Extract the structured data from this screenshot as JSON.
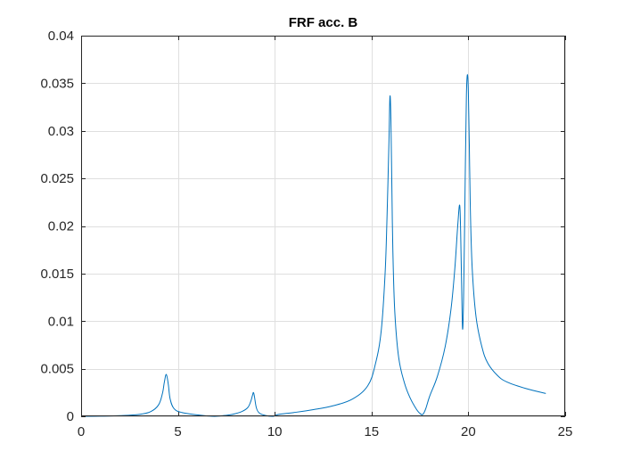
{
  "chart_data": {
    "type": "line",
    "title": "FRF acc. B",
    "xlabel": "",
    "ylabel": "",
    "xlim": [
      0,
      25
    ],
    "ylim": [
      0,
      0.04
    ],
    "grid": true,
    "x_ticks": [
      0,
      5,
      10,
      15,
      20,
      25
    ],
    "x_tick_labels": [
      "0",
      "5",
      "10",
      "15",
      "20",
      "25"
    ],
    "y_ticks": [
      0,
      0.005,
      0.01,
      0.015,
      0.02,
      0.025,
      0.03,
      0.035,
      0.04
    ],
    "y_tick_labels": [
      "0",
      "0.005",
      "0.01",
      "0.015",
      "0.02",
      "0.025",
      "0.03",
      "0.035",
      "0.04"
    ],
    "series": [
      {
        "color": "#0072BD",
        "x": [
          0,
          1,
          2,
          3,
          3.6,
          4.0,
          4.2,
          4.3,
          4.4,
          4.5,
          4.6,
          4.8,
          5.2,
          6,
          6.5,
          6.9,
          7.3,
          7.8,
          8.3,
          8.6,
          8.75,
          8.85,
          8.9,
          8.95,
          9.05,
          9.2,
          9.5,
          9.9,
          10.2,
          11,
          12,
          13,
          14,
          14.8,
          15.2,
          15.5,
          15.7,
          15.8,
          15.9,
          15.95,
          16.0,
          16.05,
          16.1,
          16.2,
          16.4,
          16.7,
          17.0,
          17.3,
          17.5,
          17.65,
          17.8,
          18.0,
          18.4,
          18.8,
          19.1,
          19.3,
          19.45,
          19.55,
          19.6,
          19.65,
          19.7,
          19.75,
          19.8,
          19.85,
          19.9,
          19.95,
          20.0,
          20.05,
          20.1,
          20.2,
          20.4,
          20.7,
          21.0,
          21.5,
          22.0,
          23.0,
          24.0
        ],
        "y": [
          0,
          2e-05,
          7e-05,
          0.0002,
          0.0005,
          0.0012,
          0.0024,
          0.0036,
          0.0044,
          0.0034,
          0.0018,
          0.0008,
          0.0004,
          0.00015,
          5e-05,
          0.0,
          6e-05,
          0.0002,
          0.0005,
          0.0009,
          0.0015,
          0.0022,
          0.0025,
          0.0021,
          0.0009,
          0.00035,
          0.0001,
          0.0,
          0.0002,
          0.0004,
          0.0007,
          0.0011,
          0.0018,
          0.0032,
          0.0055,
          0.009,
          0.015,
          0.021,
          0.029,
          0.0336,
          0.0312,
          0.024,
          0.0175,
          0.011,
          0.0062,
          0.0035,
          0.0019,
          0.0008,
          0.0003,
          0.0002,
          0.0008,
          0.0021,
          0.0042,
          0.0073,
          0.0112,
          0.0155,
          0.02,
          0.0222,
          0.0195,
          0.014,
          0.0092,
          0.012,
          0.019,
          0.027,
          0.0338,
          0.0359,
          0.0341,
          0.0285,
          0.022,
          0.0155,
          0.0104,
          0.0073,
          0.0056,
          0.0043,
          0.0036,
          0.0029,
          0.0024
        ]
      }
    ]
  }
}
